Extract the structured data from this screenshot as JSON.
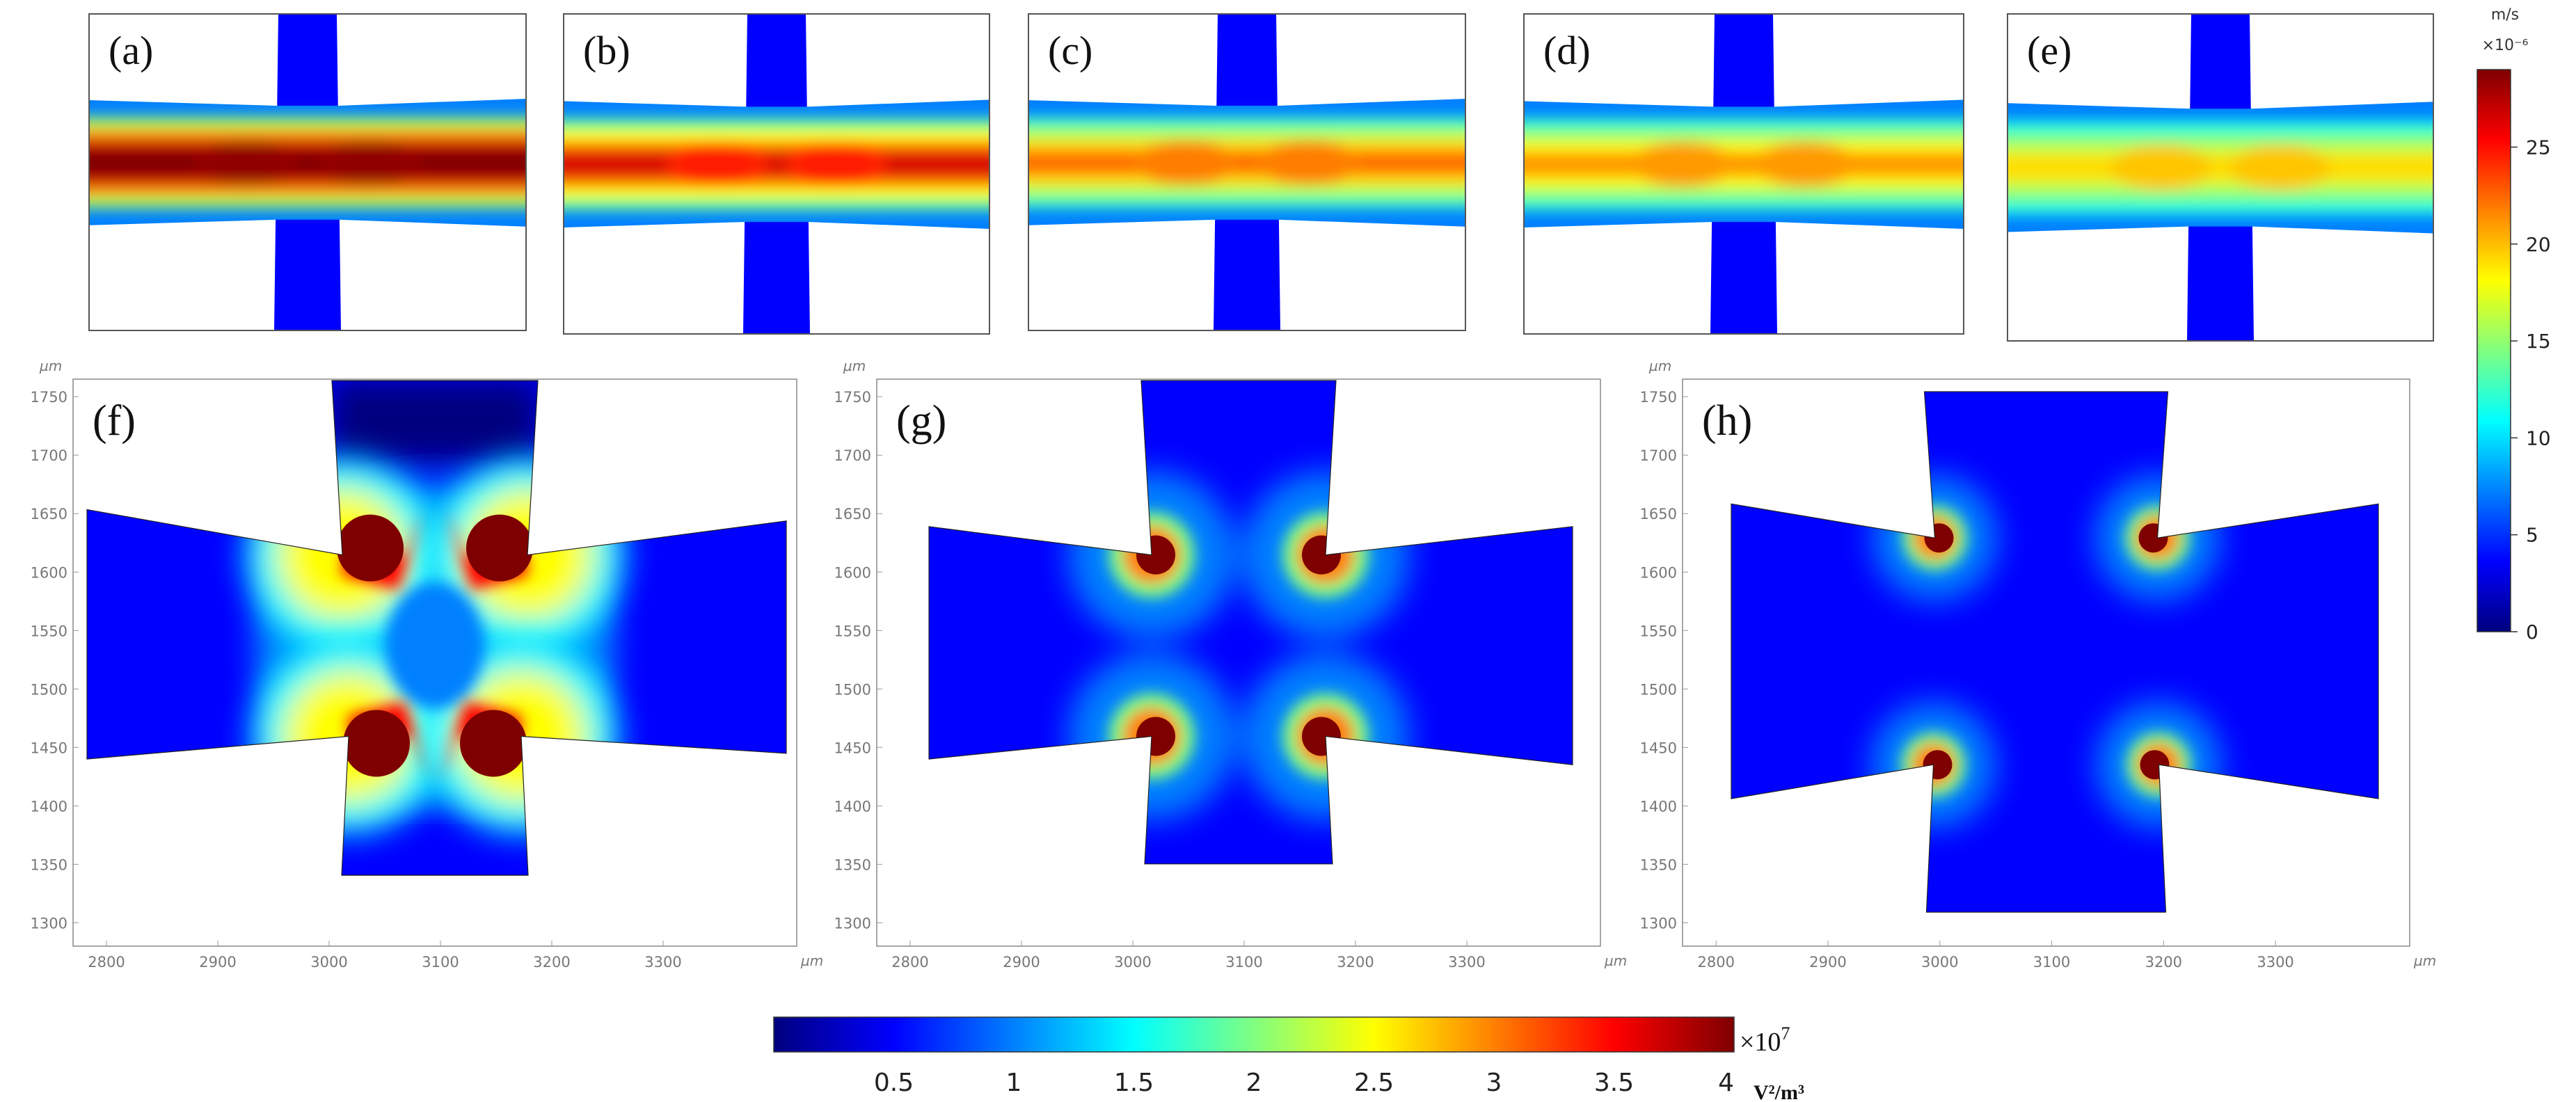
{
  "colors": {
    "jet": [
      "#00007f",
      "#0000ff",
      "#0080ff",
      "#00ffff",
      "#80ff80",
      "#ffff00",
      "#ff8000",
      "#ff0000",
      "#7f0000"
    ],
    "border": "#555555",
    "text": "#111111",
    "tick": "#777777"
  },
  "velocity_panels": [
    {
      "label": "(a)",
      "intensity": 0.97
    },
    {
      "label": "(b)",
      "intensity": 0.72
    },
    {
      "label": "(c)",
      "intensity": 0.55
    },
    {
      "label": "(d)",
      "intensity": 0.5
    },
    {
      "label": "(e)",
      "intensity": 0.42
    }
  ],
  "velocity_colorbar": {
    "unit": "m/s",
    "scale": "×10⁻⁶",
    "ticks": [
      "0",
      "5",
      "10",
      "15",
      "20",
      "25"
    ]
  },
  "field_panels": [
    {
      "label": "(f)",
      "style": "f"
    },
    {
      "label": "(g)",
      "style": "g"
    },
    {
      "label": "(h)",
      "style": "h"
    }
  ],
  "field_axes": {
    "unit": "µm",
    "y_ticks": [
      "1750",
      "1700",
      "1650",
      "1600",
      "1550",
      "1500",
      "1450",
      "1400",
      "1350",
      "1300"
    ],
    "x_ticks": [
      "2800",
      "2900",
      "3000",
      "3100",
      "3200",
      "3300"
    ]
  },
  "field_colorbar": {
    "multiplier": "×10",
    "exponent": "7",
    "unit": "V²/m³",
    "ticks": [
      "0.5",
      "1",
      "1.5",
      "2",
      "2.5",
      "3",
      "3.5",
      "4"
    ]
  }
}
